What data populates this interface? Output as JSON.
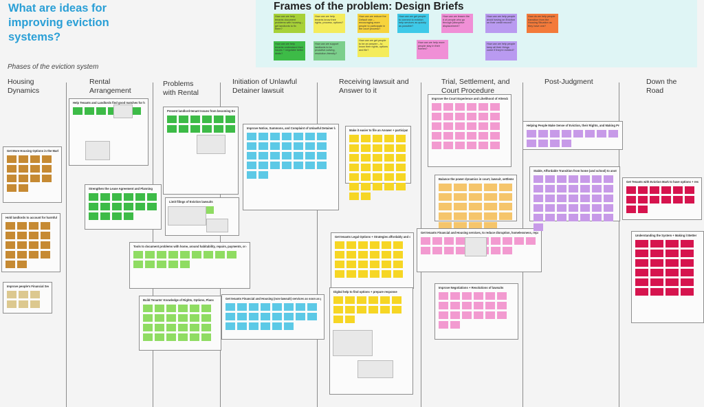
{
  "header": {
    "title": "What are ideas for improving eviction systems?",
    "frames_heading": "Frames of the problem: Design Briefs",
    "phases_label": "Phases of the eviction system"
  },
  "colors": {
    "title": "#2a9fd6",
    "frames_background": "#dff5f5",
    "note_brown": "#c68a33",
    "note_green": "#3dbb47",
    "note_lightgreen": "#8fdc62",
    "note_blue": "#5cc9e6",
    "note_yellow": "#f6d624",
    "note_orange": "#f5c56b",
    "note_pink": "#f29ad0",
    "note_purple": "#c79ae8",
    "note_red": "#d6144e",
    "note_tan": "#dcc88f"
  },
  "design_briefs": [
    {
      "text": "How can we help tenants document problems with housing – get landlords to fix them?",
      "color": "#a7d138"
    },
    {
      "text": "How can we help tenants know their rights, process, options?",
      "color": "#f4ec5b"
    },
    {
      "text": "How can we reduce the Default rate – encouraging more people to participate in the court process?",
      "color": "#f7d33c"
    },
    {
      "text": "How can we get people to connect to eviction help services as quickly as possible?",
      "color": "#3ec9e8"
    },
    {
      "text": "How can we lessen the # of people who go through (disruptive displacement?",
      "color": "#f08fd6"
    },
    {
      "text": "How can we help people avoid having an Eviction on their credit record?",
      "color": "#b99af0"
    },
    {
      "text": "How do we help people transition from the Housing Situation as they have one?",
      "color": "#f37a3a"
    },
    {
      "text": "How can we help tenants understand their issues + negotiate better deals?",
      "color": "#3dbb47"
    },
    {
      "text": "How can we support landlords to be proactive-solving, resolution-friendly?",
      "color": "#7ccf8c"
    },
    {
      "text": "How can we get people to be an answer – to know their rights, options and file?",
      "color": "#f4ec5b"
    },
    {
      "text": "How can we help more people stay in their homes?",
      "color": "#f08fd6"
    },
    {
      "text": "How can we help people keep all their things come if they're evicted?",
      "color": "#b99af0"
    }
  ],
  "phases": [
    {
      "label": "Housing Dynamics"
    },
    {
      "label": "Rental Arrangement"
    },
    {
      "label": "Problems with Rental"
    },
    {
      "label": "Initiation of Unlawful Detainer lawsuit"
    },
    {
      "label": "Receiving lawsuit and Answer to it"
    },
    {
      "label": "Trial, Settlement, and Court Procedure"
    },
    {
      "label": "Post-Judgment"
    },
    {
      "label": "Down the Road"
    }
  ],
  "frames": [
    {
      "title": "Get More Housing Options in the Market",
      "color": "#c68a33",
      "notes": 14
    },
    {
      "title": "Hold landlords to account for harmful or fraudulent behavior",
      "color": "#c68a33",
      "notes": 18
    },
    {
      "title": "Improve people's Financial Security",
      "color": "#dcc88f",
      "notes": 6
    },
    {
      "title": "Help Tenants and Landlords find good matches for housing",
      "color": "#3dbb47",
      "notes": 6
    },
    {
      "title": "Strengthen the Lease Agreement and Planning",
      "color": "#3dbb47",
      "notes": 16
    },
    {
      "title": "Prevent landlord-tenant Issues from becoming Evictions",
      "color": "#3dbb47",
      "notes": 12
    },
    {
      "title": "Limit filings of Eviction lawsuits",
      "color": "#8fdc62",
      "notes": 4
    },
    {
      "title": "Tools to document problems with home, around habitability, repairs, payments, or otherwise",
      "color": "#8fdc62",
      "notes": 14
    },
    {
      "title": "Build Tenants' Knowledge of Rights, Options, Plans",
      "color": "#8fdc62",
      "notes": 24
    },
    {
      "title": "Improve Notice, Summons, and Complaint of Unlawful Detainer lawsuit",
      "color": "#5cc9e6",
      "notes": 30
    },
    {
      "title": "Get tenants Financial and Housing (non-lawsuit) services as soon as possible",
      "color": "#5cc9e6",
      "notes": 22
    },
    {
      "title": "Make it easier to file an Answer + participate",
      "color": "#f6d624",
      "notes": 32
    },
    {
      "title": "Get tenants Legal Options + Strategies affordably and quickly",
      "color": "#f6d624",
      "notes": 24
    },
    {
      "title": "Digital help to find options + prepare response",
      "color": "#f6d624",
      "notes": 14
    },
    {
      "title": "Improve the Court Experience and Likelihood of Attendance",
      "color": "#f29ad0",
      "notes": 30
    },
    {
      "title": "Balance the power dynamics in court, lawsuit, settlement",
      "color": "#f5c56b",
      "notes": 24
    },
    {
      "title": "Get tenants Financial and Housing services, to reduce disruption, homelessness, repair credits",
      "color": "#f29ad0",
      "notes": 18
    },
    {
      "title": "Improve Negotiations + Resolutions of lawsuits",
      "color": "#f29ad0",
      "notes": 20
    },
    {
      "title": "Helping People Make Sense of Eviction, their Rights, and Making Protections",
      "color": "#c79ae8",
      "notes": 12
    },
    {
      "title": "Stable, Affordable Transition from home (and school) to another",
      "color": "#c79ae8",
      "notes": 36
    },
    {
      "title": "Get Tenants with Eviction Mark to have options + resources",
      "color": "#d6144e",
      "notes": 14
    },
    {
      "title": "Understanding the System + Making it Better",
      "color": "#d6144e",
      "notes": 24
    }
  ]
}
